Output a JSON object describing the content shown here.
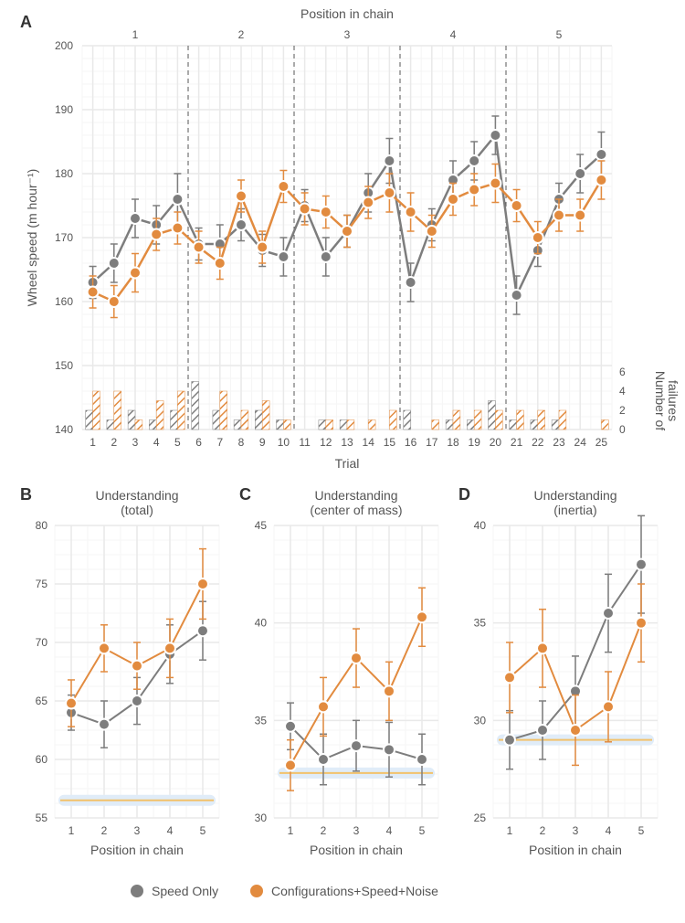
{
  "colors": {
    "grey": "#7d7d7d",
    "orange": "#e28b3f",
    "grid_major": "#e9e9e9",
    "grid_minor": "#f5f5f5",
    "axis_text": "#666666",
    "highlight_halo": "#e0ecf8",
    "highlight_line": "#f2c26b",
    "panel_bg": "#ffffff"
  },
  "legend": {
    "items": [
      {
        "label": "Speed Only",
        "color_key": "grey"
      },
      {
        "label": "Configurations+Speed+Noise",
        "color_key": "orange"
      }
    ]
  },
  "panelA": {
    "letter": "A",
    "x": {
      "label": "Trial",
      "min": 0.5,
      "max": 25.5,
      "ticks": [
        1,
        2,
        3,
        4,
        5,
        6,
        7,
        8,
        9,
        10,
        11,
        12,
        13,
        14,
        15,
        16,
        17,
        18,
        19,
        20,
        21,
        22,
        23,
        24,
        25
      ]
    },
    "y_left": {
      "label": "Wheel speed (m hour⁻¹)",
      "min": 140,
      "max": 200,
      "ticks": [
        140,
        150,
        160,
        170,
        180,
        190,
        200
      ]
    },
    "y_right": {
      "label": "Number of\nfailures",
      "min": 0,
      "max": 6,
      "ticks": [
        0,
        2,
        4,
        6
      ]
    },
    "top_header": {
      "label": "Position in chain",
      "positions": [
        1,
        2,
        3,
        4,
        5
      ]
    },
    "dividers_x": [
      5.5,
      10.5,
      15.5,
      20.5
    ],
    "series": {
      "grey": {
        "color_key": "grey",
        "points": [
          {
            "x": 1,
            "y": 163,
            "err": 2.5
          },
          {
            "x": 2,
            "y": 166,
            "err": 3
          },
          {
            "x": 3,
            "y": 173,
            "err": 3
          },
          {
            "x": 4,
            "y": 172,
            "err": 3
          },
          {
            "x": 5,
            "y": 176,
            "err": 4
          },
          {
            "x": 6,
            "y": 169,
            "err": 2.5
          },
          {
            "x": 7,
            "y": 169,
            "err": 3
          },
          {
            "x": 8,
            "y": 172,
            "err": 2.5
          },
          {
            "x": 9,
            "y": 168,
            "err": 2.5
          },
          {
            "x": 10,
            "y": 167,
            "err": 3
          },
          {
            "x": 11,
            "y": 175,
            "err": 2.5
          },
          {
            "x": 12,
            "y": 167,
            "err": 3
          },
          {
            "x": 13,
            "y": 171,
            "err": 2.5
          },
          {
            "x": 14,
            "y": 177,
            "err": 3
          },
          {
            "x": 15,
            "y": 182,
            "err": 3.5
          },
          {
            "x": 16,
            "y": 163,
            "err": 3
          },
          {
            "x": 17,
            "y": 172,
            "err": 2.5
          },
          {
            "x": 18,
            "y": 179,
            "err": 3
          },
          {
            "x": 19,
            "y": 182,
            "err": 3
          },
          {
            "x": 20,
            "y": 186,
            "err": 3
          },
          {
            "x": 21,
            "y": 161,
            "err": 3
          },
          {
            "x": 22,
            "y": 168,
            "err": 2.5
          },
          {
            "x": 23,
            "y": 176,
            "err": 2.5
          },
          {
            "x": 24,
            "y": 180,
            "err": 3
          },
          {
            "x": 25,
            "y": 183,
            "err": 3.5
          }
        ]
      },
      "orange": {
        "color_key": "orange",
        "points": [
          {
            "x": 1,
            "y": 161.5,
            "err": 2.5
          },
          {
            "x": 2,
            "y": 160,
            "err": 2.5
          },
          {
            "x": 3,
            "y": 164.5,
            "err": 3
          },
          {
            "x": 4,
            "y": 170.5,
            "err": 2.5
          },
          {
            "x": 5,
            "y": 171.5,
            "err": 2.5
          },
          {
            "x": 6,
            "y": 168.5,
            "err": 2.5
          },
          {
            "x": 7,
            "y": 166,
            "err": 2.5
          },
          {
            "x": 8,
            "y": 176.5,
            "err": 2.5
          },
          {
            "x": 9,
            "y": 168.5,
            "err": 2.5
          },
          {
            "x": 10,
            "y": 178,
            "err": 2.5
          },
          {
            "x": 11,
            "y": 174.5,
            "err": 2.5
          },
          {
            "x": 12,
            "y": 174,
            "err": 2.5
          },
          {
            "x": 13,
            "y": 171,
            "err": 2.5
          },
          {
            "x": 14,
            "y": 175.5,
            "err": 2.5
          },
          {
            "x": 15,
            "y": 177,
            "err": 3
          },
          {
            "x": 16,
            "y": 174,
            "err": 3
          },
          {
            "x": 17,
            "y": 171,
            "err": 2.5
          },
          {
            "x": 18,
            "y": 176,
            "err": 2.5
          },
          {
            "x": 19,
            "y": 177.5,
            "err": 2.5
          },
          {
            "x": 20,
            "y": 178.5,
            "err": 3
          },
          {
            "x": 21,
            "y": 175,
            "err": 2.5
          },
          {
            "x": 22,
            "y": 170,
            "err": 2.5
          },
          {
            "x": 23,
            "y": 173.5,
            "err": 2.5
          },
          {
            "x": 24,
            "y": 173.5,
            "err": 2.5
          },
          {
            "x": 25,
            "y": 179,
            "err": 3
          }
        ]
      }
    },
    "bars": {
      "grey": [
        2,
        1,
        2,
        1,
        2,
        5,
        2,
        1,
        2,
        1,
        0,
        1,
        1,
        0,
        0,
        2,
        0,
        1,
        1,
        3,
        1,
        1,
        1,
        0,
        0
      ],
      "orange": [
        4,
        4,
        1,
        3,
        4,
        0,
        4,
        2,
        3,
        1,
        0,
        1,
        1,
        1,
        2,
        0,
        1,
        2,
        2,
        2,
        2,
        2,
        2,
        0,
        1
      ]
    },
    "bar_width": 0.34,
    "line_width": 2.5,
    "marker_radius": 6,
    "marker_stroke": 2
  },
  "panelsBCD": [
    {
      "letter": "B",
      "title": "Understanding\n(total)",
      "x": {
        "label": "Position in chain",
        "min": 0.5,
        "max": 5.5,
        "ticks": [
          1,
          2,
          3,
          4,
          5
        ]
      },
      "y": {
        "min": 55,
        "max": 80,
        "ticks": [
          55,
          60,
          65,
          70,
          75,
          80
        ]
      },
      "highlight_y": 56.5,
      "series": {
        "grey": [
          {
            "x": 1,
            "y": 64,
            "err": 1.5
          },
          {
            "x": 2,
            "y": 63,
            "err": 2
          },
          {
            "x": 3,
            "y": 65,
            "err": 2
          },
          {
            "x": 4,
            "y": 69,
            "err": 2.5
          },
          {
            "x": 5,
            "y": 71,
            "err": 2.5
          }
        ],
        "orange": [
          {
            "x": 1,
            "y": 64.8,
            "err": 2
          },
          {
            "x": 2,
            "y": 69.5,
            "err": 2
          },
          {
            "x": 3,
            "y": 68,
            "err": 2
          },
          {
            "x": 4,
            "y": 69.5,
            "err": 2.5
          },
          {
            "x": 5,
            "y": 75,
            "err": 3
          }
        ]
      }
    },
    {
      "letter": "C",
      "title": "Understanding\n(center of mass)",
      "x": {
        "label": "Position in chain",
        "min": 0.5,
        "max": 5.5,
        "ticks": [
          1,
          2,
          3,
          4,
          5
        ]
      },
      "y": {
        "min": 30,
        "max": 45,
        "ticks": [
          30,
          35,
          40,
          45
        ]
      },
      "highlight_y": 32.3,
      "series": {
        "grey": [
          {
            "x": 1,
            "y": 34.7,
            "err": 1.2
          },
          {
            "x": 2,
            "y": 33,
            "err": 1.3
          },
          {
            "x": 3,
            "y": 33.7,
            "err": 1.3
          },
          {
            "x": 4,
            "y": 33.5,
            "err": 1.4
          },
          {
            "x": 5,
            "y": 33,
            "err": 1.3
          }
        ],
        "orange": [
          {
            "x": 1,
            "y": 32.7,
            "err": 1.3
          },
          {
            "x": 2,
            "y": 35.7,
            "err": 1.5
          },
          {
            "x": 3,
            "y": 38.2,
            "err": 1.5
          },
          {
            "x": 4,
            "y": 36.5,
            "err": 1.5
          },
          {
            "x": 5,
            "y": 40.3,
            "err": 1.5
          }
        ]
      }
    },
    {
      "letter": "D",
      "title": "Understanding\n(inertia)",
      "x": {
        "label": "Position in chain",
        "min": 0.5,
        "max": 5.5,
        "ticks": [
          1,
          2,
          3,
          4,
          5
        ]
      },
      "y": {
        "min": 25,
        "max": 40,
        "ticks": [
          25,
          30,
          35,
          40
        ]
      },
      "highlight_y": 29,
      "series": {
        "grey": [
          {
            "x": 1,
            "y": 29,
            "err": 1.5
          },
          {
            "x": 2,
            "y": 29.5,
            "err": 1.5
          },
          {
            "x": 3,
            "y": 31.5,
            "err": 1.8
          },
          {
            "x": 4,
            "y": 35.5,
            "err": 2
          },
          {
            "x": 5,
            "y": 38,
            "err": 2.5
          }
        ],
        "orange": [
          {
            "x": 1,
            "y": 32.2,
            "err": 1.8
          },
          {
            "x": 2,
            "y": 33.7,
            "err": 2
          },
          {
            "x": 3,
            "y": 29.5,
            "err": 1.8
          },
          {
            "x": 4,
            "y": 30.7,
            "err": 1.8
          },
          {
            "x": 5,
            "y": 35,
            "err": 2
          }
        ]
      }
    }
  ],
  "small_panel_style": {
    "line_width": 2,
    "marker_radius": 6,
    "marker_stroke": 2
  }
}
